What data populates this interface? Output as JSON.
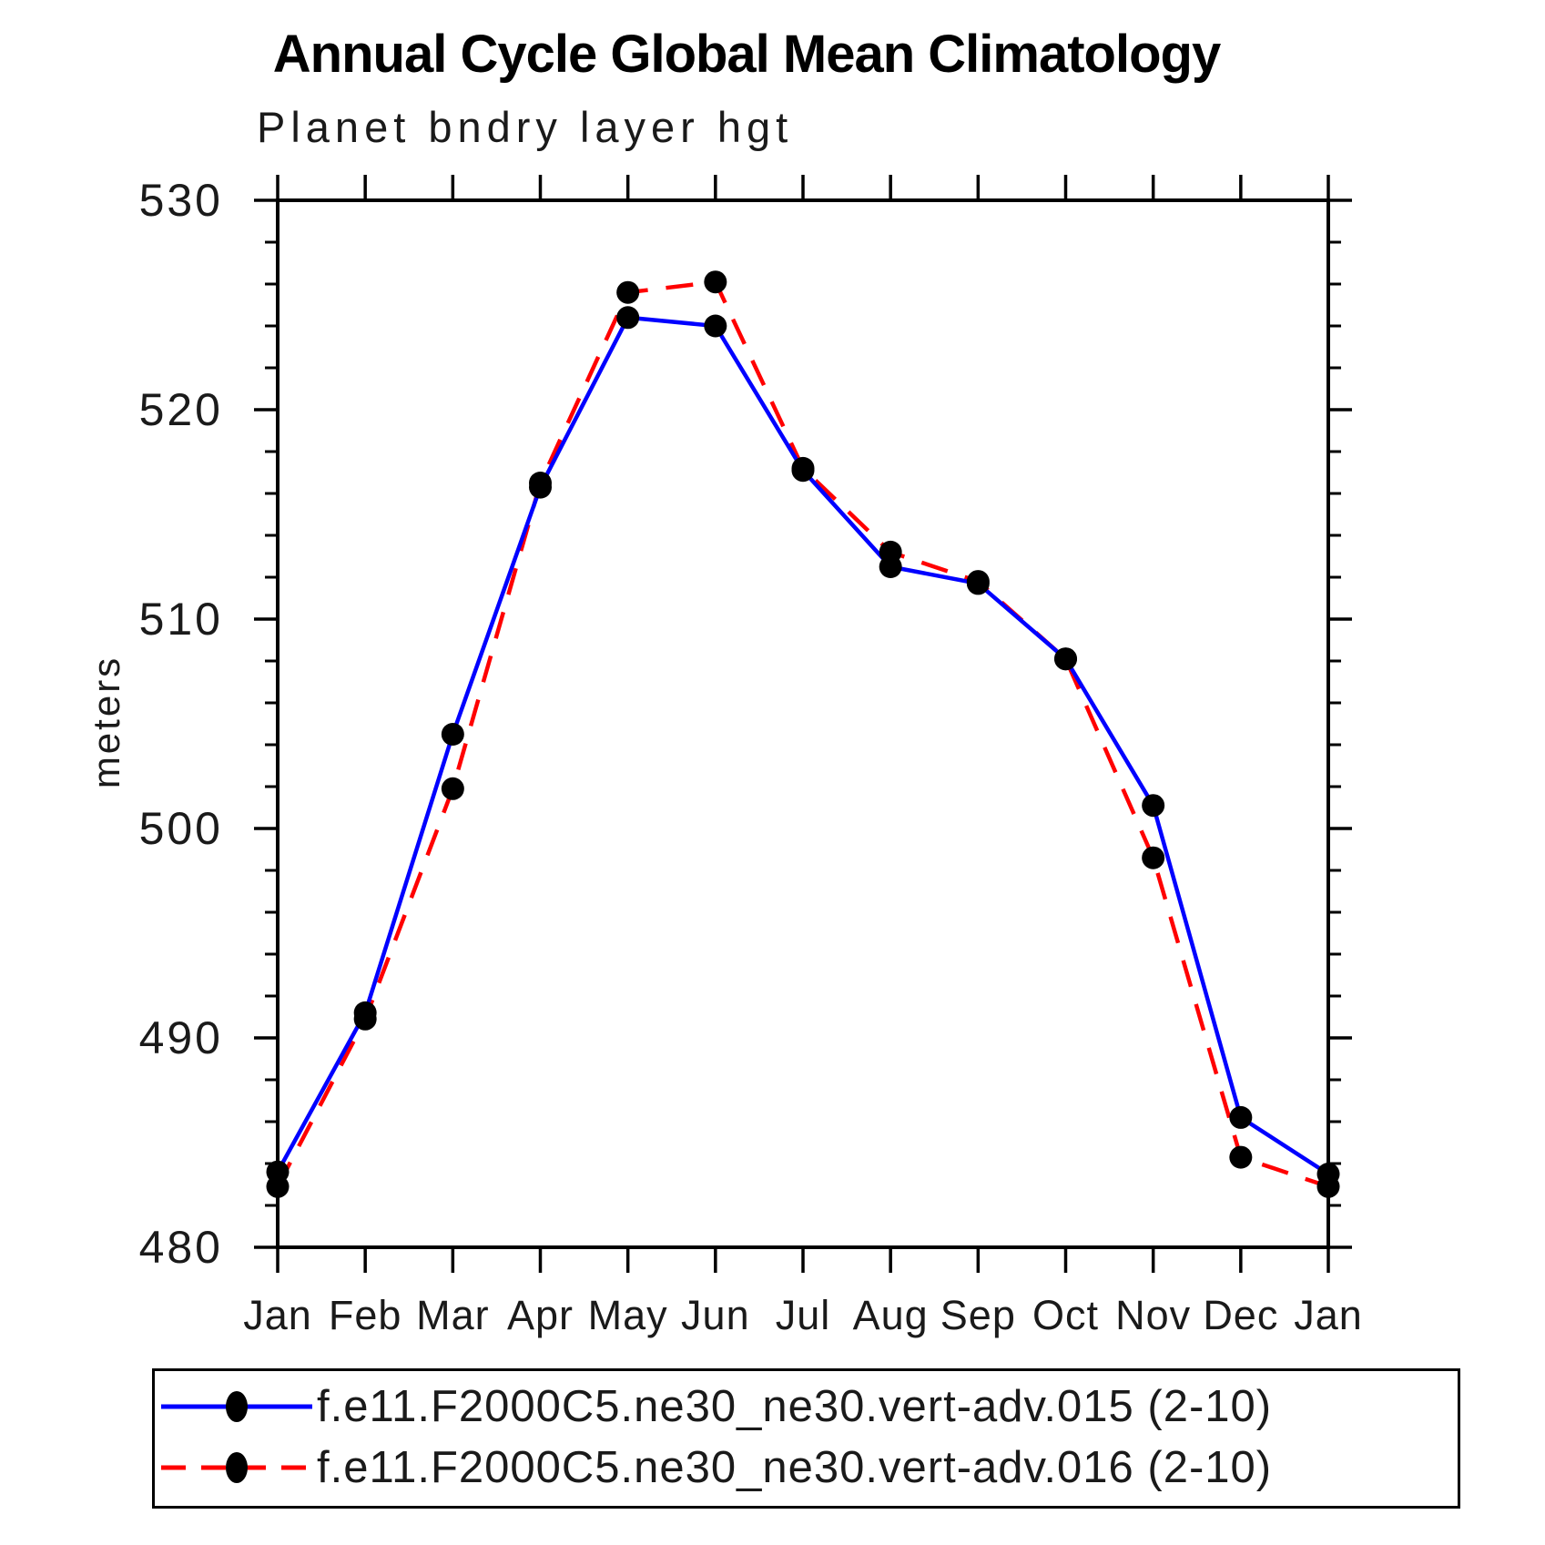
{
  "chart_data": {
    "type": "line",
    "title": "Annual Cycle Global Mean Climatology",
    "subtitle": "Planet bndry layer hgt",
    "ylabel": "meters",
    "xlabel": "",
    "categories": [
      "Jan",
      "Feb",
      "Mar",
      "Apr",
      "May",
      "Jun",
      "Jul",
      "Aug",
      "Sep",
      "Oct",
      "Nov",
      "Dec",
      "Jan"
    ],
    "ylim": [
      480,
      530
    ],
    "ytick_major_interval": 10,
    "ytick_minor_interval": 2,
    "ytick_major_labels": [
      "480",
      "490",
      "500",
      "510",
      "520",
      "530"
    ],
    "grid": false,
    "legend_position": "bottom",
    "axis_color": "#000000",
    "marker_color": "#000000",
    "series": [
      {
        "name": "f.e11.F2000C5.ne30_ne30.vert-adv.015 (2-10)",
        "color": "#0000ff",
        "style": "solid",
        "marker": "circle",
        "values": [
          483.6,
          491.2,
          504.5,
          516.3,
          524.4,
          524.0,
          517.1,
          512.5,
          511.7,
          508.1,
          501.1,
          486.2,
          483.5
        ]
      },
      {
        "name": "f.e11.F2000C5.ne30_ne30.vert-adv.016 (2-10)",
        "color": "#ff0000",
        "style": "dashed",
        "marker": "circle",
        "values": [
          482.9,
          490.9,
          501.9,
          516.5,
          525.6,
          526.1,
          517.2,
          513.2,
          511.8,
          508.1,
          498.6,
          484.3,
          482.9
        ]
      }
    ]
  }
}
